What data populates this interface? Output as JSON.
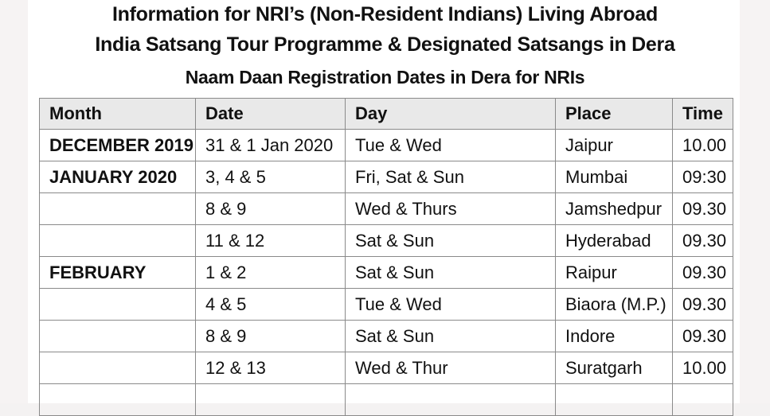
{
  "titles": {
    "line1": "Information for NRI’s (Non-Resident Indians) Living Abroad",
    "line2": "India Satsang Tour Programme & Designated Satsangs in Dera",
    "line3": "Naam Daan Registration Dates in Dera for NRIs"
  },
  "table": {
    "headers": [
      "Month",
      "Date",
      "Day",
      "Place",
      "Time"
    ],
    "rows": [
      [
        "DECEMBER 2019",
        "31 & 1 Jan 2020",
        "Tue & Wed",
        "Jaipur",
        "10.00"
      ],
      [
        "JANUARY 2020",
        "3, 4 & 5",
        "Fri, Sat & Sun",
        "Mumbai",
        "09:30"
      ],
      [
        "",
        "8 & 9",
        "Wed & Thurs",
        "Jamshedpur",
        "09.30"
      ],
      [
        "",
        "11 & 12",
        "Sat & Sun",
        "Hyderabad",
        "09.30"
      ],
      [
        "FEBRUARY",
        "1 & 2",
        "Sat & Sun",
        "Raipur",
        "09.30"
      ],
      [
        "",
        "4 & 5",
        "Tue & Wed",
        "Biaora (M.P.)",
        "09.30"
      ],
      [
        "",
        "8 & 9",
        "Sat & Sun",
        "Indore",
        "09.30"
      ],
      [
        "",
        "12 & 13",
        "Wed & Thur",
        "Suratgarh",
        "10.00"
      ],
      [
        "",
        "",
        "",
        "",
        ""
      ]
    ]
  }
}
